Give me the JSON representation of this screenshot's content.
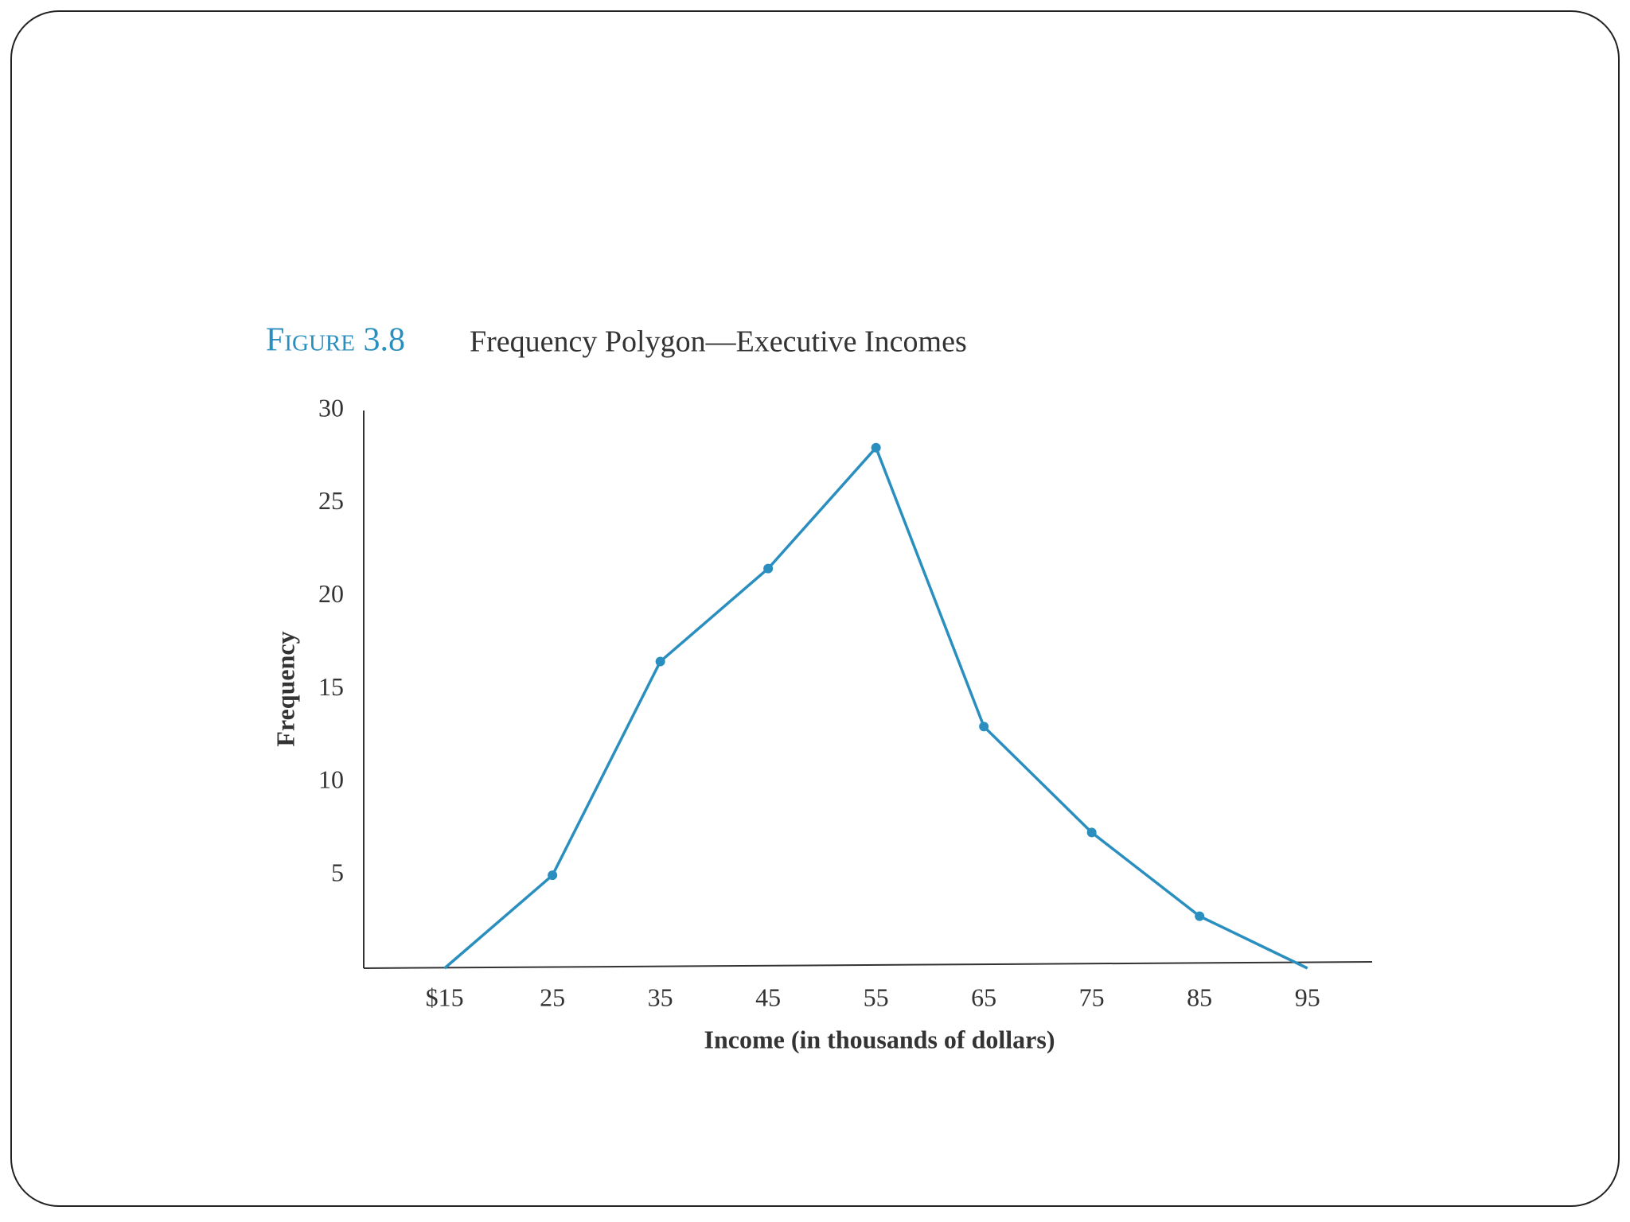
{
  "chart_data": {
    "type": "line",
    "figure_label": "Figure 3.8",
    "title": "Frequency Polygon—Executive Incomes",
    "x_label": "Income (in thousands of dollars)",
    "y_label": "Frequency",
    "x": [
      15,
      25,
      35,
      45,
      55,
      65,
      75,
      85,
      95
    ],
    "values": [
      0,
      5,
      16.5,
      21.5,
      28,
      13,
      7.3,
      2.8,
      0
    ],
    "color": "#2a8fbf",
    "xlim": [
      7.5,
      101
    ],
    "xticks": [
      {
        "value": 15,
        "label": "$15"
      },
      25,
      35,
      45,
      55,
      65,
      75,
      85,
      95
    ],
    "ylim": [
      0,
      30
    ],
    "yticks": [
      5,
      10,
      15,
      20,
      25,
      30
    ],
    "grid": false
  }
}
